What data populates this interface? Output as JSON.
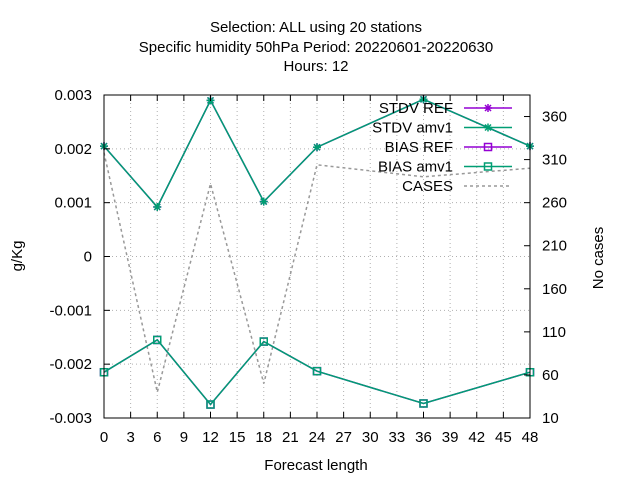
{
  "chart_data": {
    "type": "line",
    "title_lines": [
      "Selection: ALL using    20 stations",
      "Specific humidity 50hPa   Period: 20220601-20220630",
      "Hours:  12"
    ],
    "xlabel": "Forecast length",
    "ylabel": "g/Kg",
    "y2label": "No cases",
    "x_ticks": [
      0,
      3,
      6,
      9,
      12,
      15,
      18,
      21,
      24,
      27,
      30,
      33,
      36,
      39,
      42,
      45,
      48
    ],
    "y_ticks": [
      "0.003",
      "0.002",
      "0.001",
      "0",
      "-0.001",
      "-0.002",
      "-0.003"
    ],
    "y_tick_values": [
      0.003,
      0.002,
      0.001,
      0,
      -0.001,
      -0.002,
      -0.003
    ],
    "y2_ticks": [
      360,
      310,
      260,
      210,
      160,
      110,
      60,
      10
    ],
    "xlim": [
      0,
      48
    ],
    "ylim": [
      -0.003,
      0.003
    ],
    "y2lim": [
      10,
      385
    ],
    "grid": true,
    "legend_position": "top-right",
    "series": [
      {
        "name": "STDV REF",
        "color": "#9400d3",
        "marker": "star",
        "axis": "y",
        "x": [
          0,
          6,
          12,
          18,
          24,
          36,
          48
        ],
        "values": [
          0.00205,
          0.00092,
          0.0029,
          0.00102,
          0.00203,
          0.00292,
          0.00205
        ]
      },
      {
        "name": "STDV amv1",
        "color": "#009e73",
        "marker": "star",
        "axis": "y",
        "x": [
          0,
          6,
          12,
          18,
          24,
          36,
          48
        ],
        "values": [
          0.00205,
          0.00092,
          0.0029,
          0.00102,
          0.00203,
          0.00292,
          0.00205
        ]
      },
      {
        "name": "BIAS REF",
        "color": "#9400d3",
        "marker": "square",
        "axis": "y",
        "x": [
          0,
          6,
          12,
          18,
          24,
          36,
          48
        ],
        "values": [
          -0.00215,
          -0.00155,
          -0.00275,
          -0.00158,
          -0.00213,
          -0.00273,
          -0.00215
        ]
      },
      {
        "name": "BIAS amv1",
        "color": "#009e73",
        "marker": "square",
        "axis": "y",
        "x": [
          0,
          6,
          12,
          18,
          24,
          36,
          48
        ],
        "values": [
          -0.00215,
          -0.00155,
          -0.00275,
          -0.00158,
          -0.00213,
          -0.00273,
          -0.00215
        ]
      },
      {
        "name": "CASES",
        "color": "#999999",
        "marker": "none",
        "dashed": true,
        "axis": "y2",
        "x": [
          0,
          6,
          12,
          18,
          24,
          36,
          48
        ],
        "values": [
          318,
          40,
          282,
          50,
          304,
          290,
          300
        ]
      }
    ]
  }
}
